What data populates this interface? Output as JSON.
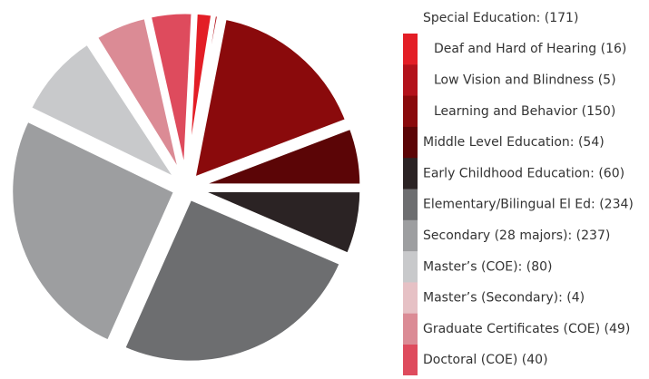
{
  "chart_data": {
    "type": "pie",
    "legend_header": "Special Education: (171)",
    "categories": [
      "Deaf and Hard of Hearing (16)",
      "Low Vision and Blindness (5)",
      "Learning and Behavior (150)",
      "Middle Level Education: (54)",
      "Early Childhood Education: (60)",
      "Elementary/Bilingual El Ed: (234)",
      "Secondary (28 majors): (237)",
      "Master’s (COE): (80)",
      "Master’s (Secondary): (4)",
      "Graduate Certificates (COE) (49)",
      "Doctoral (COE) (40)"
    ],
    "values": [
      16,
      5,
      150,
      54,
      60,
      234,
      237,
      80,
      4,
      49,
      40
    ],
    "colors": [
      "#e31e26",
      "#b3121b",
      "#8a0a0c",
      "#5b0506",
      "#2b2324",
      "#6d6e70",
      "#9d9ea0",
      "#c8c9cb",
      "#e6c1c5",
      "#db8b95",
      "#de4b5d"
    ]
  }
}
